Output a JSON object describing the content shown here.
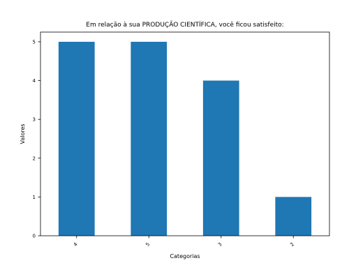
{
  "chart_data": {
    "type": "bar",
    "title": "Em relação à sua PRODUÇÃO CIENTÍFICA, você ficou satisfeito:",
    "xlabel": "Categorias",
    "ylabel": "Valores",
    "categories": [
      "4",
      "5",
      "3",
      "2"
    ],
    "values": [
      5,
      5,
      4,
      1
    ],
    "ylim": [
      0,
      5.25
    ],
    "yticks": [
      0,
      1,
      2,
      3,
      4,
      5
    ],
    "grid": false,
    "bar_color": "#1f77b4"
  }
}
